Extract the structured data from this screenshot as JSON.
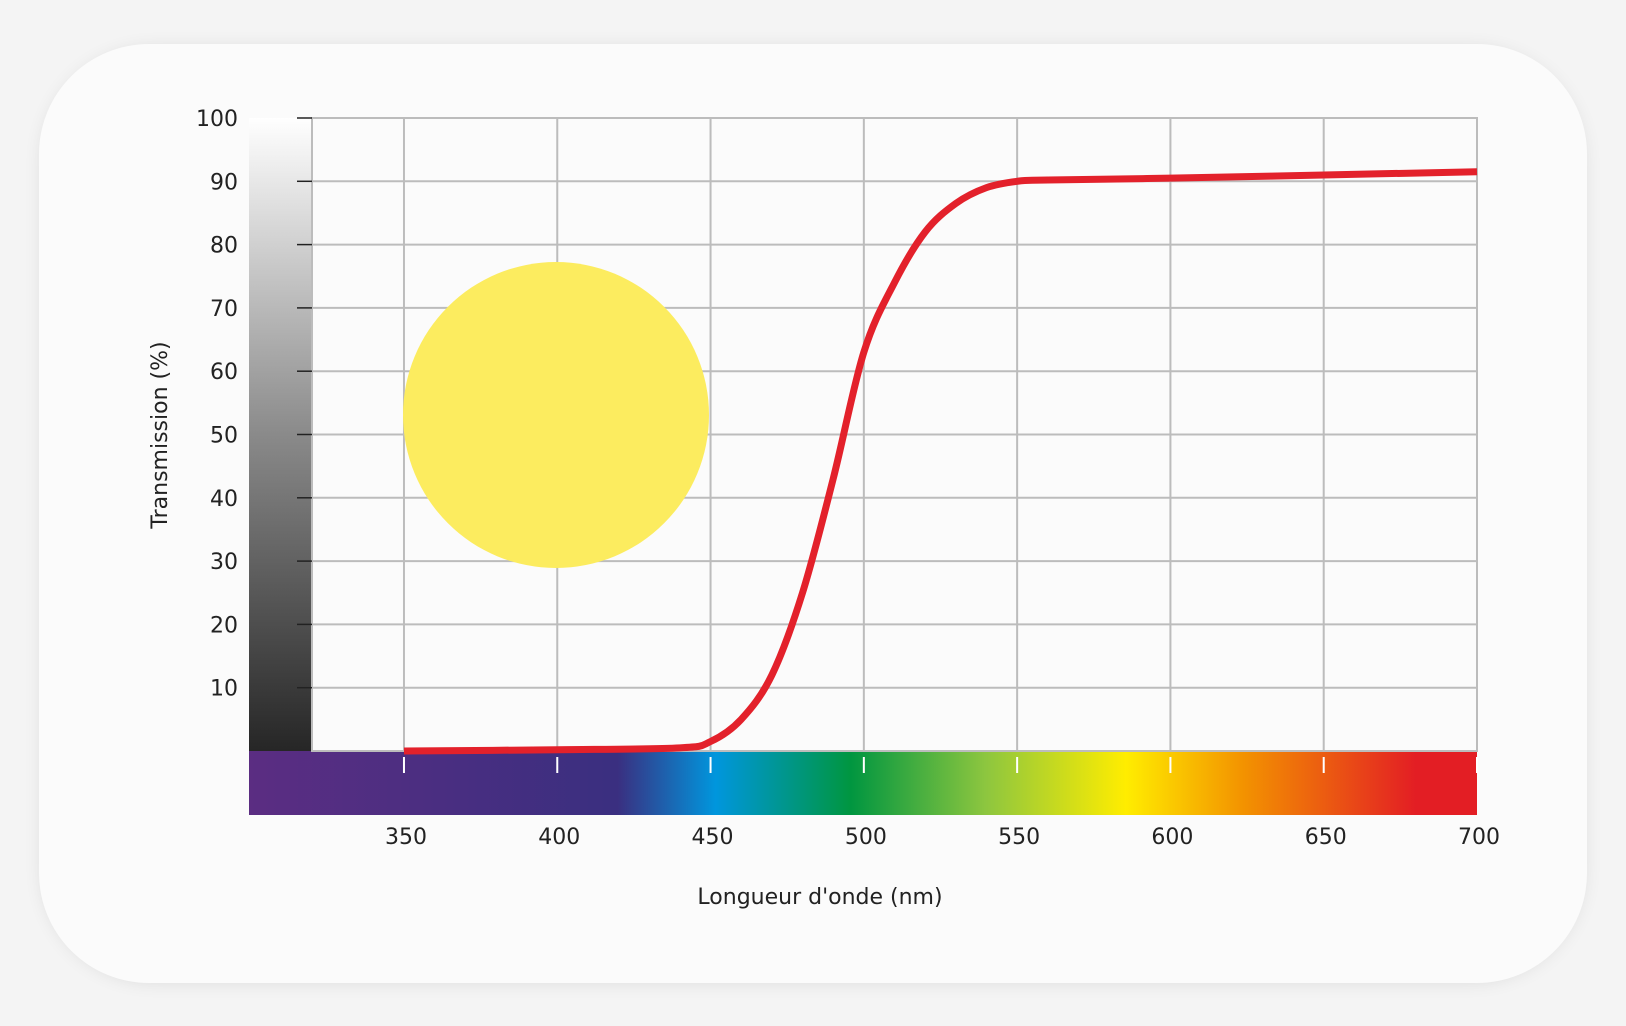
{
  "chart_data": {
    "type": "line",
    "xlabel": "Longueur d'onde (nm)",
    "ylabel": "Transmission (%)",
    "x": [
      350,
      400,
      440,
      450,
      460,
      470,
      480,
      490,
      500,
      510,
      520,
      530,
      540,
      550,
      560,
      600,
      650,
      700
    ],
    "values": [
      0,
      0.2,
      0.5,
      1.5,
      5,
      12,
      25,
      43,
      63,
      74,
      82,
      86.5,
      89,
      90,
      90.2,
      90.5,
      91,
      91.5
    ],
    "color": "#e3212b",
    "xlim": [
      320,
      700
    ],
    "ylim": [
      0,
      100
    ],
    "xticks": [
      350,
      400,
      450,
      500,
      550,
      600,
      650,
      700
    ],
    "yticks": [
      10,
      20,
      30,
      40,
      50,
      60,
      70,
      80,
      90,
      100
    ],
    "grid": true
  }
}
